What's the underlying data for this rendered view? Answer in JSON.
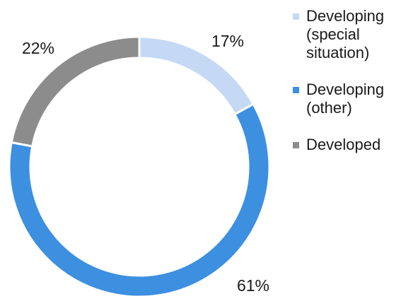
{
  "chart_data": {
    "type": "pie",
    "variant": "donut",
    "title": "",
    "slices": [
      {
        "label": "Developing\n(special\nsituation)",
        "value": 17,
        "display": "17%",
        "color": "#c5d9f5"
      },
      {
        "label": "Developing\n(other)",
        "value": 61,
        "display": "61%",
        "color": "#3d8fe0"
      },
      {
        "label": "Developed",
        "value": 22,
        "display": "22%",
        "color": "#8c8c8c"
      }
    ],
    "legend_position": "right"
  }
}
